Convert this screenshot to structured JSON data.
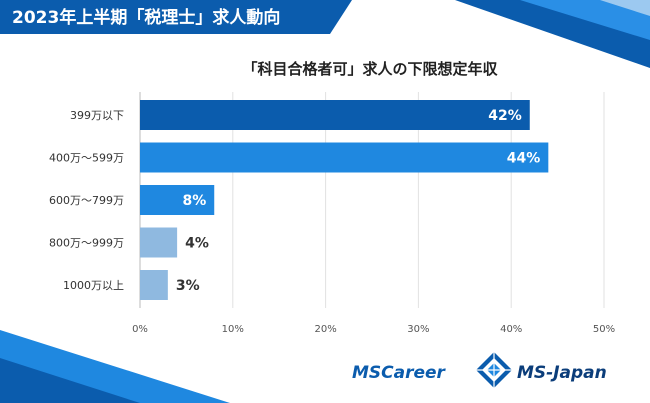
{
  "banner": {
    "title": "2023年上半期「税理士」求人動向"
  },
  "brand": {
    "logo_left": "MSCareer",
    "logo_right": "MS-Japan",
    "color_primary": "#0b5cad",
    "color_secondary": "#1f88e0",
    "color_light": "#8fb9e0"
  },
  "chart_data": {
    "type": "bar",
    "orientation": "horizontal",
    "title": "「科目合格者可」求人の下限想定年収",
    "categories": [
      "399万以下",
      "400万～599万",
      "600万～799万",
      "800万～999万",
      "1000万以上"
    ],
    "values": [
      42,
      44,
      8,
      4,
      3
    ],
    "value_labels": [
      "42%",
      "44%",
      "8%",
      "4%",
      "3%"
    ],
    "bar_colors": [
      "#0b5cad",
      "#1f88e0",
      "#1f88e0",
      "#8fb9e0",
      "#8fb9e0"
    ],
    "xlim": [
      0,
      50
    ],
    "ticks": [
      0,
      10,
      20,
      30,
      40,
      50
    ],
    "tick_labels": [
      "0%",
      "10%",
      "20%",
      "30%",
      "40%",
      "50%"
    ],
    "grid": true
  }
}
